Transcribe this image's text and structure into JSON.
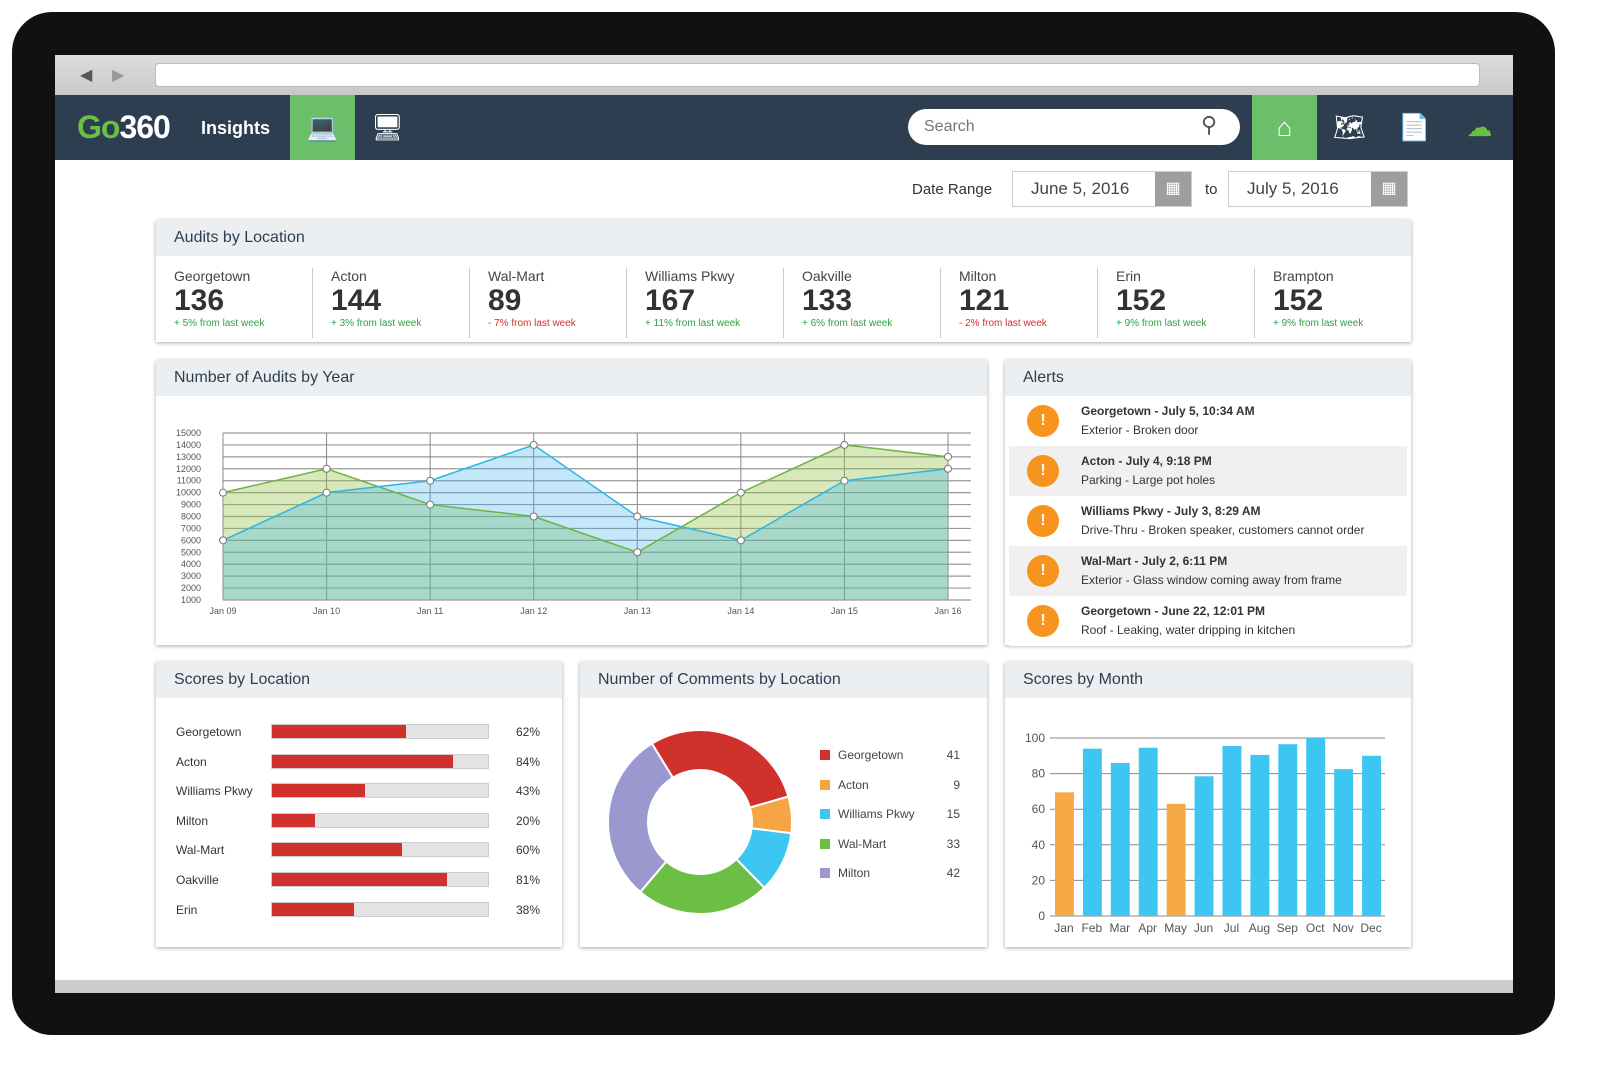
{
  "nav": {
    "logo": "Go360",
    "title": "Insights",
    "search_placeholder": "Search"
  },
  "date_range": {
    "label": "Date Range",
    "from": "June 5, 2016",
    "to_label": "to",
    "to": "July 5, 2016"
  },
  "audits": {
    "title": "Audits by Location",
    "items": [
      {
        "name": "Georgetown",
        "value": "136",
        "change": "+ 5% from last week",
        "dir": "up"
      },
      {
        "name": "Acton",
        "value": "144",
        "change": "+ 3% from last week",
        "dir": "up"
      },
      {
        "name": "Wal-Mart",
        "value": "89",
        "change": "- 7% from last week",
        "dir": "down"
      },
      {
        "name": "Williams Pkwy",
        "value": "167",
        "change": "+ 11% from last week",
        "dir": "up"
      },
      {
        "name": "Oakville",
        "value": "133",
        "change": "+ 6% from last week",
        "dir": "up"
      },
      {
        "name": "Milton",
        "value": "121",
        "change": "- 2% from last week",
        "dir": "down"
      },
      {
        "name": "Erin",
        "value": "152",
        "change": "+ 9% from last week",
        "dir": "up"
      },
      {
        "name": "Brampton",
        "value": "152",
        "change": "+ 9% from last week",
        "dir": "up"
      }
    ]
  },
  "alerts": {
    "title": "Alerts",
    "items": [
      {
        "title": "Georgetown - July 5, 10:34 AM",
        "detail": "Exterior - Broken door"
      },
      {
        "title": "Acton - July 4, 9:18 PM",
        "detail": "Parking - Large pot holes"
      },
      {
        "title": "Williams Pkwy - July 3, 8:29 AM",
        "detail": "Drive-Thru - Broken speaker, customers cannot order"
      },
      {
        "title": "Wal-Mart - July 2, 6:11 PM",
        "detail": "Exterior - Glass window coming away from frame"
      },
      {
        "title": "Georgetown - June 22, 12:01 PM",
        "detail": "Roof - Leaking, water dripping in kitchen"
      }
    ]
  },
  "scores": {
    "title": "Scores by Location",
    "items": [
      {
        "name": "Georgetown",
        "pct": 62,
        "label": "62%"
      },
      {
        "name": "Acton",
        "pct": 84,
        "label": "84%"
      },
      {
        "name": "Williams Pkwy",
        "pct": 43,
        "label": "43%"
      },
      {
        "name": "Milton",
        "pct": 20,
        "label": "20%"
      },
      {
        "name": "Wal-Mart",
        "pct": 60,
        "label": "60%"
      },
      {
        "name": "Oakville",
        "pct": 81,
        "label": "81%"
      },
      {
        "name": "Erin",
        "pct": 38,
        "label": "38%"
      }
    ]
  },
  "chart_data": [
    {
      "type": "area",
      "title": "Number of Audits by Year",
      "categories": [
        "Jan 09",
        "Jan 10",
        "Jan 11",
        "Jan 12",
        "Jan 13",
        "Jan 14",
        "Jan 15",
        "Jan 16"
      ],
      "ylim": [
        1000,
        15000
      ],
      "yticks": [
        1000,
        2000,
        3000,
        4000,
        5000,
        6000,
        7000,
        8000,
        9000,
        10000,
        11000,
        12000,
        13000,
        14000,
        15000
      ],
      "grid": true,
      "series": [
        {
          "values": [
            10000,
            12000,
            9000,
            8000,
            5000,
            10000,
            14000,
            13000
          ],
          "color": "#6db33f"
        },
        {
          "values": [
            6000,
            10000,
            11000,
            14000,
            8000,
            6000,
            11000,
            12000
          ],
          "color": "#29b6e8"
        }
      ]
    },
    {
      "type": "pie",
      "title": "Number of Comments by Location",
      "donut": true,
      "legend": "right",
      "slices": [
        {
          "name": "Georgetown",
          "value": 41,
          "color": "#d0312d"
        },
        {
          "name": "Acton",
          "value": 9,
          "color": "#f6a545"
        },
        {
          "name": "Williams Pkwy",
          "value": 15,
          "color": "#3ec6f2"
        },
        {
          "name": "Wal-Mart",
          "value": 33,
          "color": "#6cbf45"
        },
        {
          "name": "Milton",
          "value": 42,
          "color": "#9b98cf"
        }
      ]
    },
    {
      "type": "bar",
      "title": "Scores by Month",
      "categories": [
        "Jan",
        "Feb",
        "Mar",
        "Apr",
        "May",
        "Jun",
        "Jul",
        "Aug",
        "Sep",
        "Oct",
        "Nov",
        "Dec"
      ],
      "values": [
        69.5,
        94,
        86,
        94.5,
        63,
        78.5,
        95.5,
        90.5,
        96.5,
        100,
        82.5,
        90
      ],
      "ylim": [
        0,
        100
      ],
      "yticks": [
        0,
        20,
        40,
        60,
        80,
        100
      ],
      "grid": true,
      "colors": {
        "low": "#f7a948",
        "normal": "#3ec6f2"
      }
    }
  ]
}
